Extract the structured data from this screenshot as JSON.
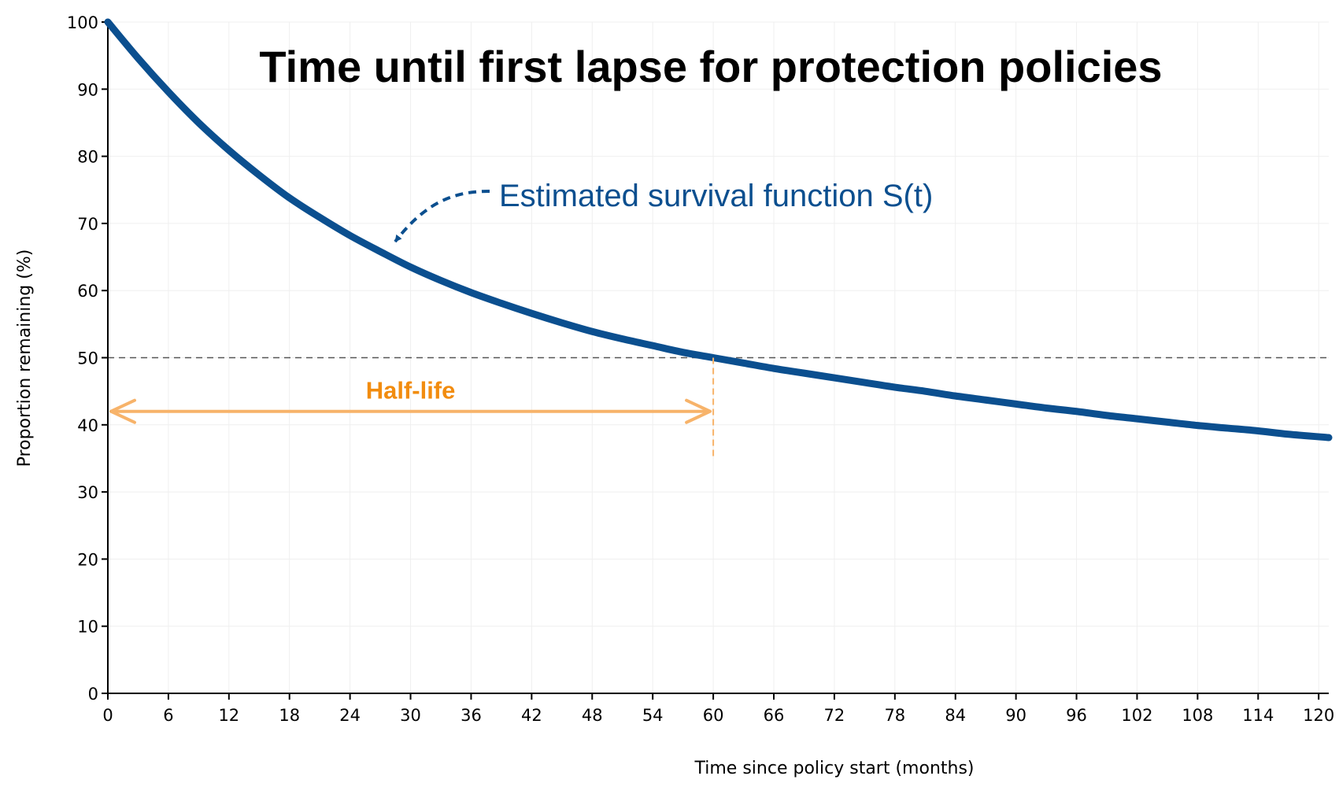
{
  "chart_data": {
    "type": "line",
    "title": "Time until first lapse for protection policies",
    "xlabel": "Time since policy start (months)",
    "ylabel": "Proportion remaining (%)",
    "xlim": [
      0,
      121
    ],
    "ylim": [
      0,
      100
    ],
    "x_ticks": [
      0,
      6,
      12,
      18,
      24,
      30,
      36,
      42,
      48,
      54,
      60,
      66,
      72,
      78,
      84,
      90,
      96,
      102,
      108,
      114,
      120
    ],
    "y_ticks": [
      0,
      10,
      20,
      30,
      40,
      50,
      60,
      70,
      80,
      90,
      100
    ],
    "grid": true,
    "series": [
      {
        "name": "Estimated survival function S(t)",
        "color": "#0b4f8f",
        "x": [
          0,
          3,
          6,
          9,
          12,
          15,
          18,
          21,
          24,
          27,
          30,
          33,
          36,
          39,
          42,
          45,
          48,
          51,
          54,
          57,
          60,
          63,
          66,
          69,
          72,
          75,
          78,
          81,
          84,
          87,
          90,
          93,
          96,
          99,
          102,
          105,
          108,
          111,
          114,
          117,
          121
        ],
        "y": [
          100,
          94.6,
          89.6,
          85.0,
          80.9,
          77.2,
          73.8,
          70.9,
          68.2,
          65.8,
          63.5,
          61.5,
          59.7,
          58.1,
          56.6,
          55.2,
          53.9,
          52.8,
          51.8,
          50.8,
          50.0,
          49.2,
          48.4,
          47.7,
          47.0,
          46.3,
          45.6,
          45.0,
          44.3,
          43.7,
          43.1,
          42.5,
          42.0,
          41.4,
          40.9,
          40.4,
          39.9,
          39.5,
          39.1,
          38.6,
          38.1
        ]
      }
    ],
    "reference_line": {
      "y": 50,
      "color": "#555555"
    },
    "half_life": {
      "label": "Half-life",
      "x_start": 0,
      "x_end": 60,
      "y": 42,
      "marker_x": 60,
      "marker_y_range": [
        35,
        50
      ],
      "color": "#f7b36a",
      "label_color": "#f28c0f"
    },
    "curve_annotation": {
      "text": "Estimated survival function S(t)",
      "color": "#0b4f8f"
    }
  }
}
